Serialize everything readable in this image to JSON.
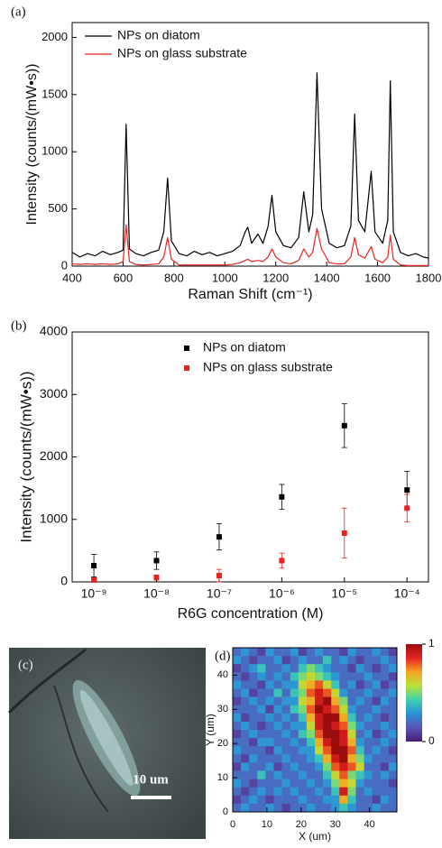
{
  "chart_data": [
    {
      "type": "line",
      "panel_label": "(a)",
      "x_label": "Raman Shift (cm⁻¹)",
      "y_label": "Intensity (counts/(mW•s))",
      "xlim": [
        400,
        1800
      ],
      "xticks": [
        400,
        600,
        800,
        1000,
        1200,
        1400,
        1600,
        1800
      ],
      "ylim": [
        0,
        2130
      ],
      "yticks": [
        0,
        500,
        1000,
        1500,
        2000
      ],
      "grid": false,
      "legend": "upper left",
      "x": [
        400,
        430,
        460,
        490,
        520,
        550,
        580,
        600,
        612,
        625,
        650,
        680,
        710,
        740,
        760,
        775,
        790,
        820,
        850,
        880,
        910,
        940,
        970,
        1000,
        1030,
        1060,
        1080,
        1090,
        1105,
        1130,
        1150,
        1170,
        1185,
        1200,
        1230,
        1260,
        1290,
        1310,
        1330,
        1345,
        1362,
        1380,
        1410,
        1440,
        1470,
        1495,
        1510,
        1525,
        1550,
        1575,
        1590,
        1620,
        1640,
        1650,
        1662,
        1690,
        1720,
        1750,
        1780,
        1800
      ],
      "series": [
        {
          "name": "NPs on diatom",
          "color": "#000000",
          "values": [
            120,
            80,
            110,
            90,
            130,
            100,
            120,
            140,
            1240,
            150,
            110,
            90,
            120,
            140,
            300,
            770,
            220,
            110,
            90,
            130,
            100,
            120,
            90,
            110,
            130,
            180,
            300,
            340,
            200,
            280,
            200,
            350,
            620,
            300,
            180,
            160,
            250,
            650,
            300,
            450,
            1690,
            500,
            200,
            160,
            180,
            350,
            1330,
            400,
            300,
            830,
            300,
            200,
            400,
            1620,
            300,
            120,
            90,
            110,
            80,
            70
          ]
        },
        {
          "name": "NPs on glass substrate",
          "color": "#e8231f",
          "values": [
            20,
            15,
            20,
            15,
            20,
            15,
            20,
            40,
            360,
            40,
            15,
            10,
            15,
            20,
            80,
            250,
            60,
            10,
            10,
            10,
            10,
            10,
            10,
            10,
            15,
            30,
            50,
            60,
            40,
            50,
            40,
            80,
            150,
            80,
            30,
            20,
            50,
            150,
            80,
            120,
            330,
            150,
            30,
            20,
            20,
            80,
            250,
            100,
            70,
            170,
            60,
            30,
            80,
            270,
            60,
            10,
            5,
            5,
            5,
            5
          ]
        }
      ]
    },
    {
      "type": "errorbar",
      "panel_label": "(b)",
      "x_label": "R6G concentration (M)",
      "y_label": "Intensity (counts/(mW•s))",
      "xscale": "log",
      "xlim": [
        4.5e-10,
        0.00022
      ],
      "xticks": [
        {
          "value": 1e-09,
          "label": "10⁻⁹"
        },
        {
          "value": 1e-08,
          "label": "10⁻⁸"
        },
        {
          "value": 1e-07,
          "label": "10⁻⁷"
        },
        {
          "value": 1e-06,
          "label": "10⁻⁶"
        },
        {
          "value": 1e-05,
          "label": "10⁻⁵"
        },
        {
          "value": 0.0001,
          "label": "10⁻⁴"
        }
      ],
      "ylim": [
        0,
        4000
      ],
      "yticks": [
        0,
        1000,
        2000,
        3000,
        4000
      ],
      "grid": false,
      "legend": "upper left",
      "x": [
        1e-09,
        1e-08,
        1e-07,
        1e-06,
        1e-05,
        0.0001
      ],
      "series": [
        {
          "name": "NPs on diatom",
          "color": "#000000",
          "values": [
            260,
            340,
            720,
            1360,
            2500,
            1470
          ],
          "errors": [
            180,
            140,
            210,
            200,
            350,
            300
          ]
        },
        {
          "name": "NPs on glass substrate",
          "color": "#e8231f",
          "values": [
            30,
            70,
            100,
            340,
            780,
            1180
          ],
          "errors": [
            20,
            40,
            100,
            120,
            400,
            220
          ]
        }
      ]
    },
    {
      "type": "heatmap",
      "panel_label": "(d)",
      "x_label": "X (um)",
      "y_label": "Y (um)",
      "xlim": [
        0,
        48
      ],
      "xticks": [
        0,
        10,
        20,
        30,
        40
      ],
      "ylim": [
        0,
        48
      ],
      "yticks": [
        0,
        10,
        20,
        30,
        40
      ],
      "clim": [
        0,
        1
      ],
      "colorbar_ticks": [
        0,
        1
      ],
      "colormap": [
        "#4a1a74",
        "#5a55b5",
        "#2c8fd6",
        "#3fd0b0",
        "#b7e236",
        "#f5a623",
        "#e52321",
        "#9a0d0d"
      ],
      "values": [
        [
          0.2,
          0.3,
          0.2,
          0.1,
          0.3,
          0.2,
          0.2,
          0.3,
          0.1,
          0.2,
          0.3,
          0.2,
          0.2,
          0.1,
          0.3,
          0.2,
          0.2,
          0.3,
          0.2,
          0.1
        ],
        [
          0.3,
          0.2,
          0.1,
          0.2,
          0.2,
          0.3,
          0.1,
          0.2,
          0.3,
          0.2,
          0.2,
          0.4,
          0.2,
          0.3,
          0.2,
          0.1,
          0.2,
          0.2,
          0.3,
          0.2
        ],
        [
          0.1,
          0.2,
          0.3,
          0.4,
          0.2,
          0.2,
          0.3,
          0.2,
          0.4,
          0.5,
          0.4,
          0.3,
          0.2,
          0.2,
          0.1,
          0.3,
          0.2,
          0.1,
          0.2,
          0.3
        ],
        [
          0.2,
          0.1,
          0.2,
          0.3,
          0.2,
          0.3,
          0.2,
          0.4,
          0.5,
          0.6,
          0.5,
          0.4,
          0.3,
          0.2,
          0.2,
          0.2,
          0.3,
          0.2,
          0.2,
          0.1
        ],
        [
          0.3,
          0.2,
          0.2,
          0.1,
          0.3,
          0.2,
          0.3,
          0.3,
          0.6,
          0.7,
          0.8,
          0.6,
          0.4,
          0.2,
          0.3,
          0.1,
          0.2,
          0.3,
          0.1,
          0.2
        ],
        [
          0.2,
          0.3,
          0.1,
          0.2,
          0.2,
          0.4,
          0.2,
          0.4,
          0.5,
          0.8,
          0.9,
          0.8,
          0.6,
          0.3,
          0.2,
          0.2,
          0.3,
          0.2,
          0.2,
          0.3
        ],
        [
          0.1,
          0.2,
          0.3,
          0.2,
          0.3,
          0.2,
          0.3,
          0.3,
          0.6,
          0.7,
          0.9,
          1.0,
          0.7,
          0.5,
          0.2,
          0.3,
          0.2,
          0.1,
          0.3,
          0.2
        ],
        [
          0.2,
          0.2,
          0.2,
          0.3,
          0.1,
          0.3,
          0.2,
          0.4,
          0.5,
          0.8,
          1.0,
          0.9,
          0.8,
          0.6,
          0.3,
          0.2,
          0.2,
          0.3,
          0.2,
          0.2
        ],
        [
          0.3,
          0.1,
          0.2,
          0.2,
          0.3,
          0.2,
          0.3,
          0.2,
          0.4,
          0.7,
          0.9,
          1.0,
          1.0,
          0.7,
          0.4,
          0.2,
          0.3,
          0.2,
          0.1,
          0.2
        ],
        [
          0.2,
          0.3,
          0.2,
          0.1,
          0.2,
          0.3,
          0.2,
          0.3,
          0.3,
          0.6,
          0.9,
          1.0,
          0.9,
          0.8,
          0.5,
          0.3,
          0.2,
          0.2,
          0.3,
          0.2
        ],
        [
          0.1,
          0.2,
          0.3,
          0.2,
          0.2,
          0.2,
          0.3,
          0.2,
          0.4,
          0.5,
          0.8,
          1.0,
          1.0,
          0.9,
          0.6,
          0.2,
          0.3,
          0.1,
          0.2,
          0.3
        ],
        [
          0.2,
          0.2,
          0.1,
          0.3,
          0.3,
          0.2,
          0.2,
          0.3,
          0.2,
          0.4,
          0.7,
          0.9,
          1.0,
          0.9,
          0.7,
          0.3,
          0.2,
          0.2,
          0.3,
          0.2
        ],
        [
          0.3,
          0.2,
          0.2,
          0.2,
          0.1,
          0.3,
          0.2,
          0.2,
          0.3,
          0.3,
          0.6,
          0.8,
          1.0,
          1.0,
          0.8,
          0.4,
          0.2,
          0.3,
          0.2,
          0.1
        ],
        [
          0.2,
          0.1,
          0.3,
          0.2,
          0.2,
          0.2,
          0.3,
          0.2,
          0.2,
          0.3,
          0.4,
          0.7,
          0.9,
          1.0,
          0.7,
          0.5,
          0.3,
          0.2,
          0.2,
          0.2
        ],
        [
          0.1,
          0.3,
          0.2,
          0.2,
          0.3,
          0.1,
          0.2,
          0.3,
          0.2,
          0.2,
          0.3,
          0.5,
          0.8,
          0.9,
          0.8,
          0.6,
          0.2,
          0.2,
          0.1,
          0.3
        ],
        [
          0.2,
          0.2,
          0.2,
          0.4,
          0.2,
          0.3,
          0.2,
          0.2,
          0.3,
          0.2,
          0.2,
          0.4,
          0.6,
          0.8,
          0.5,
          0.4,
          0.3,
          0.2,
          0.3,
          0.2
        ],
        [
          0.3,
          0.2,
          0.1,
          0.2,
          0.2,
          0.2,
          0.3,
          0.2,
          0.2,
          0.3,
          0.2,
          0.3,
          0.5,
          0.7,
          0.6,
          0.3,
          0.2,
          0.2,
          0.2,
          0.1
        ],
        [
          0.2,
          0.1,
          0.2,
          0.3,
          0.2,
          0.3,
          0.2,
          0.3,
          0.2,
          0.2,
          0.3,
          0.2,
          0.4,
          0.9,
          0.5,
          0.2,
          0.3,
          0.2,
          0.2,
          0.2
        ],
        [
          0.1,
          0.2,
          0.3,
          0.2,
          0.1,
          0.2,
          0.2,
          0.2,
          0.3,
          0.2,
          0.2,
          0.3,
          0.3,
          0.7,
          0.4,
          0.2,
          0.2,
          0.1,
          0.3,
          0.2
        ],
        [
          0.2,
          0.3,
          0.2,
          0.2,
          0.3,
          0.2,
          0.1,
          0.2,
          0.2,
          0.3,
          0.2,
          0.2,
          0.3,
          0.4,
          0.3,
          0.2,
          0.2,
          0.3,
          0.2,
          0.2
        ]
      ]
    }
  ],
  "image": {
    "panel_label": "(c)",
    "scale_bar": "10 um"
  }
}
